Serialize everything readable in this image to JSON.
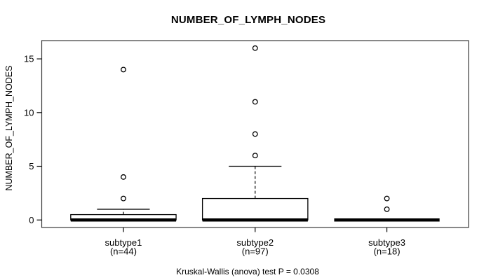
{
  "chart_data": {
    "type": "boxplot",
    "title": "NUMBER_OF_LYMPH_NODES",
    "ylabel": "NUMBER_OF_LYMPH_NODES",
    "xlabel": "",
    "caption": "Kruskal-Wallis (anova) test P = 0.0308",
    "legend_position": "none",
    "grid": false,
    "ylim": [
      -0.7,
      16.7
    ],
    "xlim": [
      0.38,
      3.62
    ],
    "yticks": [
      0,
      5,
      10,
      15
    ],
    "box_width_units": 0.8,
    "whisker_cap_width_units": 0.4,
    "colors": {
      "stroke": "#000000",
      "frame": "#3a3a3a",
      "box_fill": "#ffffff",
      "background": "#ffffff",
      "text": "#000000"
    },
    "groups": [
      {
        "label": "subtype1",
        "n_label": "(n=44)",
        "x": 1,
        "stats": {
          "whisker_low": 0,
          "q1": 0,
          "median": 0,
          "q3": 0.5,
          "whisker_high": 1
        },
        "outliers": [
          2,
          4,
          14
        ]
      },
      {
        "label": "subtype2",
        "n_label": "(n=97)",
        "x": 2,
        "stats": {
          "whisker_low": 0,
          "q1": 0,
          "median": 0,
          "q3": 2,
          "whisker_high": 5
        },
        "outliers": [
          6,
          8,
          11,
          16
        ]
      },
      {
        "label": "subtype3",
        "n_label": "(n=18)",
        "x": 3,
        "stats": {
          "whisker_low": 0,
          "q1": 0,
          "median": 0,
          "q3": 0,
          "whisker_high": 0
        },
        "outliers": [
          1,
          2
        ]
      }
    ]
  }
}
